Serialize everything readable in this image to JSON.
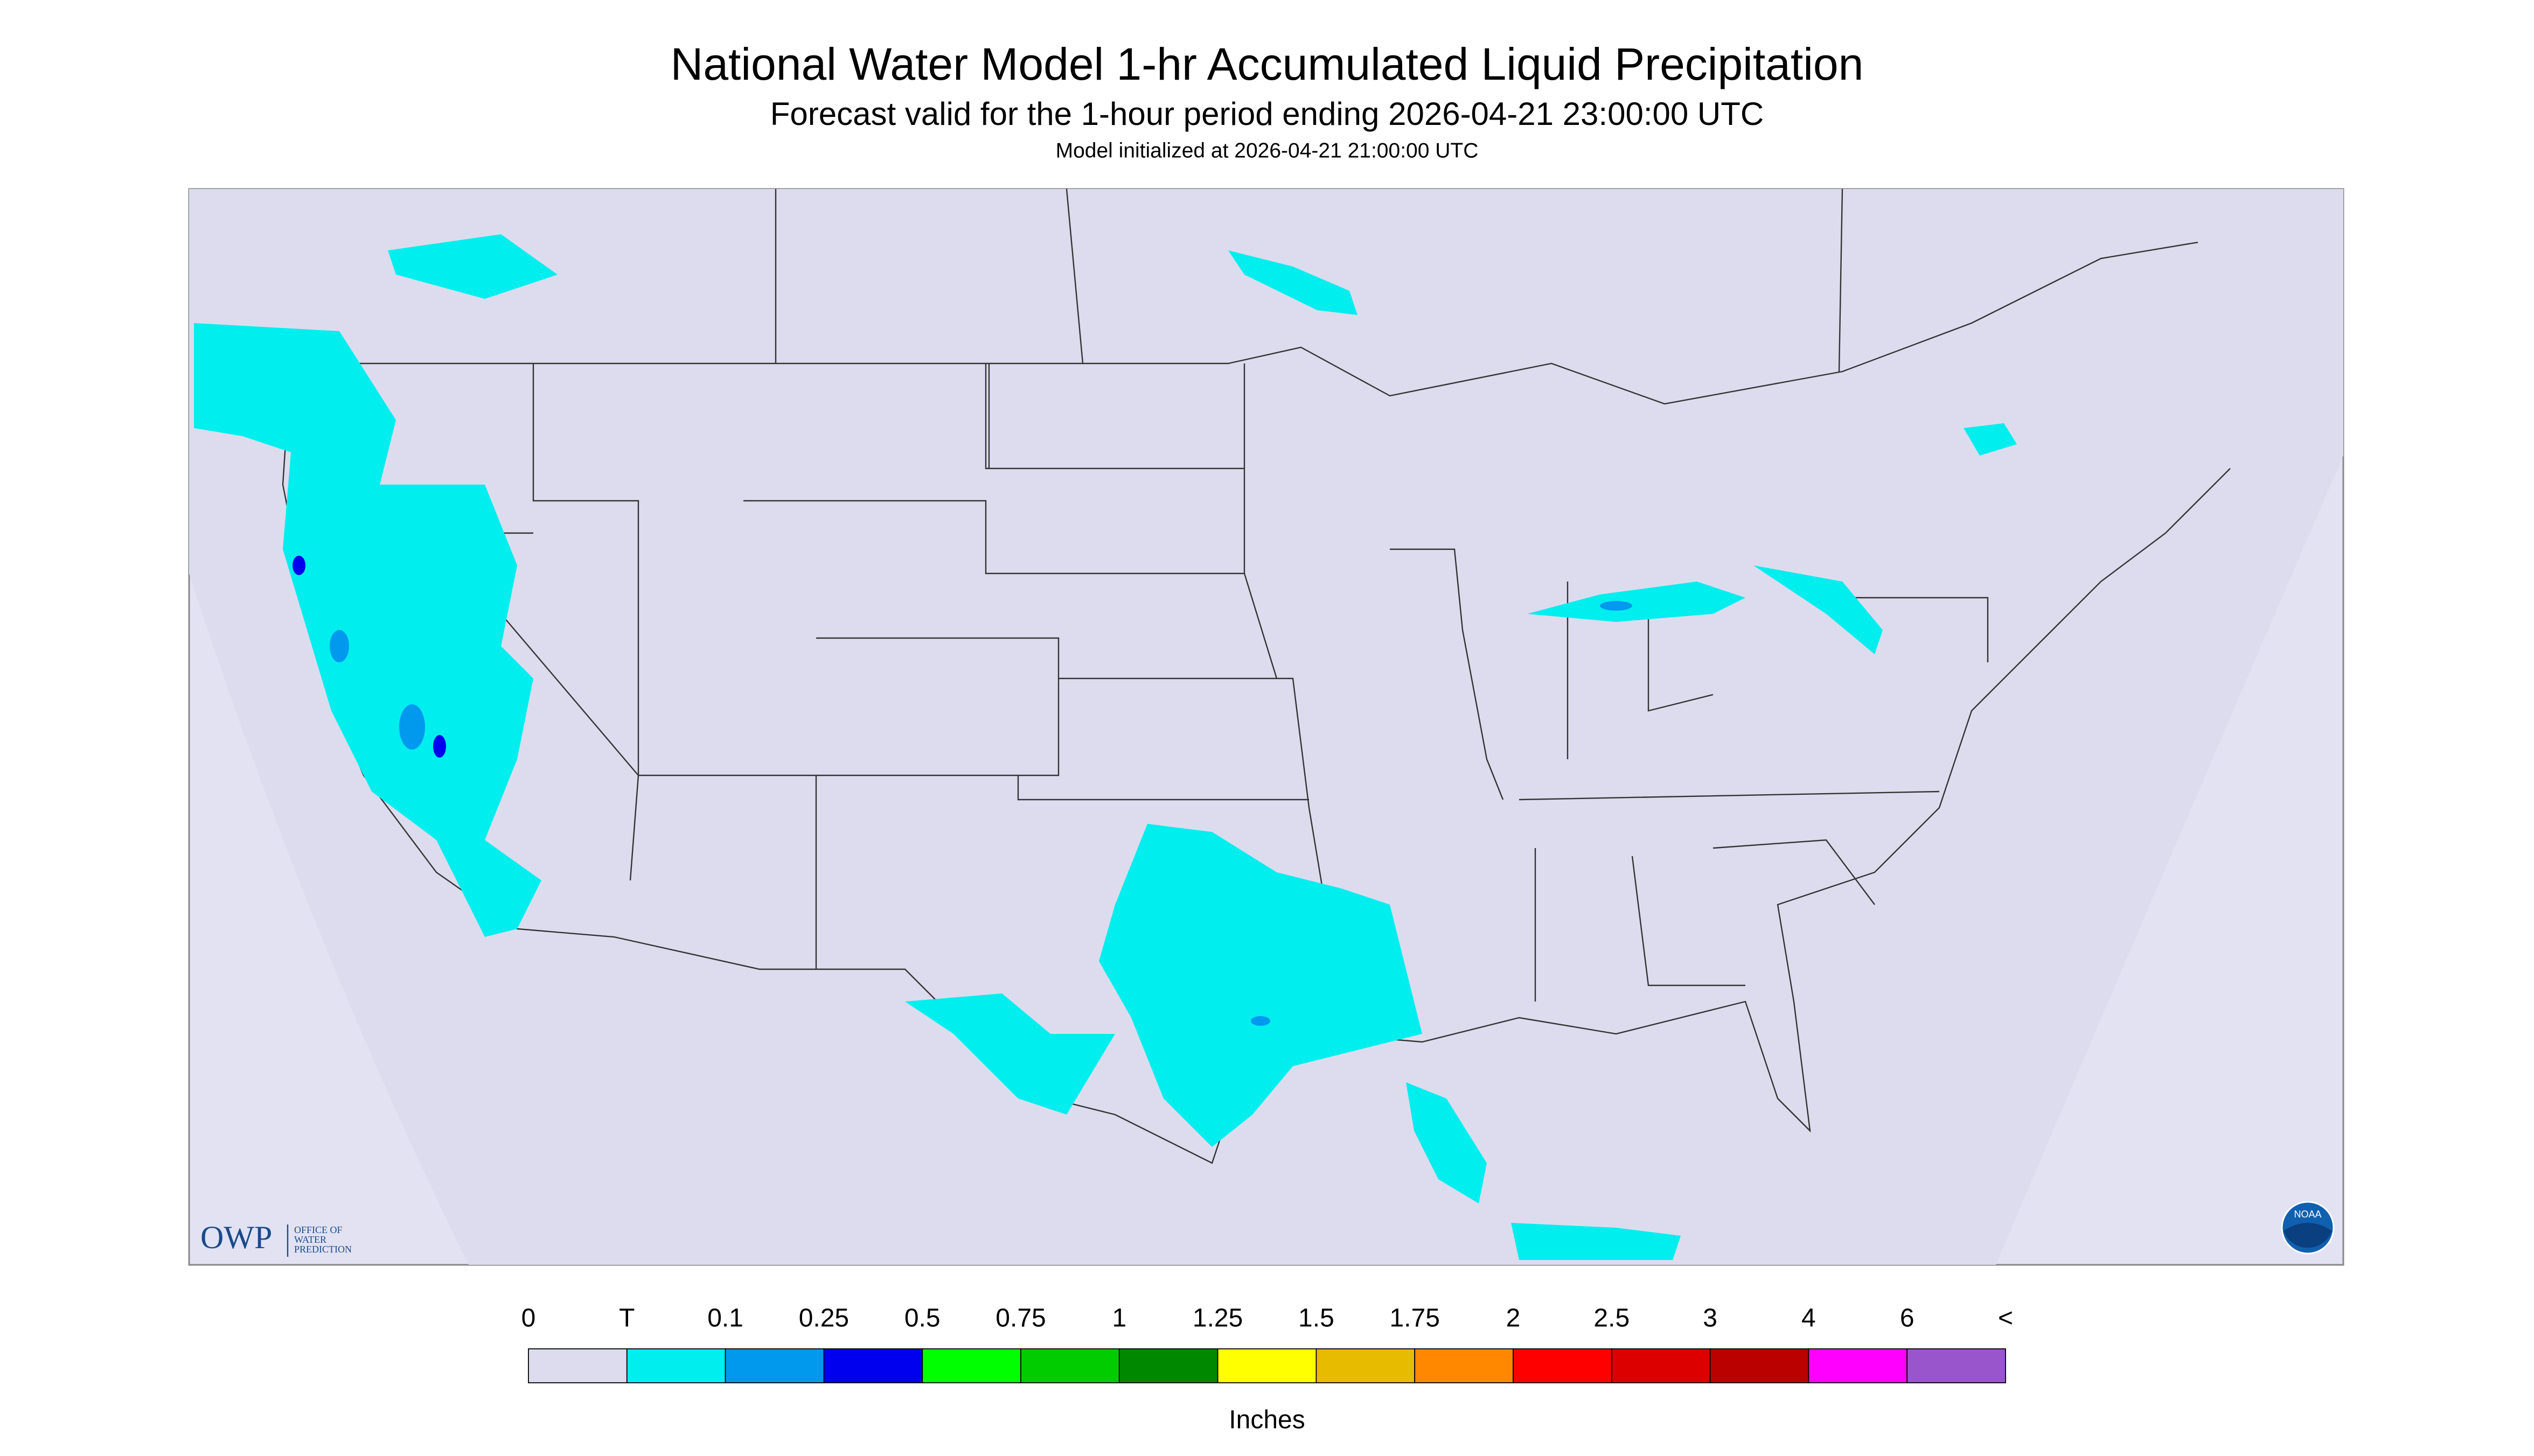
{
  "header": {
    "title": "National Water Model 1-hr Accumulated Liquid Precipitation",
    "subtitle": "Forecast valid for the 1-hour period ending 2026-04-21 23:00:00 UTC",
    "initialized": "Model initialized at 2026-04-21 21:00:00 UTC"
  },
  "logos": {
    "owp": "OWP",
    "owp_text": [
      "OFFICE OF",
      "WATER",
      "PREDICTION"
    ],
    "noaa": "NOAA"
  },
  "legend": {
    "labels": [
      "0",
      "T",
      "0.1",
      "0.25",
      "0.5",
      "0.75",
      "1",
      "1.25",
      "1.5",
      "1.75",
      "2",
      "2.5",
      "3",
      "4",
      "6",
      "<"
    ],
    "colors": [
      "#dcdcee",
      "#00eeee",
      "#0099ee",
      "#0000ee",
      "#00ff00",
      "#00cc00",
      "#008800",
      "#ffff00",
      "#e6bb00",
      "#ff8800",
      "#ff0000",
      "#dd0000",
      "#bb0000",
      "#ff00ff",
      "#9955cc"
    ],
    "units": "Inches"
  }
}
